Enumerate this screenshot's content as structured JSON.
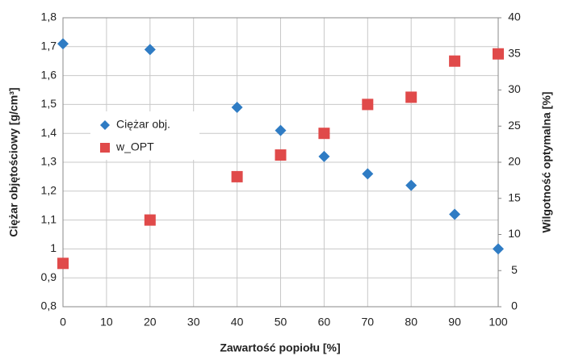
{
  "chart_data": {
    "type": "scatter",
    "xlabel": "Zawartość popiołu [%]",
    "ylabel": "Ciężar objętościowy [g/cm³]",
    "y2label": "Wilgotność optymalna [%]",
    "x": [
      0,
      20,
      40,
      50,
      60,
      70,
      80,
      90,
      100
    ],
    "series": [
      {
        "name": "Ciężar obj.",
        "color": "#2f7cc4",
        "marker": "diamond",
        "values": [
          1.71,
          1.69,
          1.49,
          1.41,
          1.32,
          1.26,
          1.22,
          1.12,
          1.0
        ]
      },
      {
        "name": "w_OPT",
        "color": "#e04a4a",
        "marker": "square",
        "axis": "y2",
        "values": [
          6,
          12,
          18,
          21,
          24,
          28,
          29,
          34,
          35
        ]
      }
    ],
    "xlim": [
      0,
      100
    ],
    "xticks": [
      0,
      10,
      20,
      30,
      40,
      50,
      60,
      70,
      80,
      90,
      100
    ],
    "ylim": [
      0.8,
      1.8
    ],
    "yticks": [
      {
        "value": 0.8,
        "label": "0,8"
      },
      {
        "value": 0.9,
        "label": "0,9"
      },
      1,
      {
        "value": 1.1,
        "label": "1,1"
      },
      {
        "value": 1.2,
        "label": "1,2"
      },
      {
        "value": 1.3,
        "label": "1,3"
      },
      {
        "value": 1.4,
        "label": "1,4"
      },
      {
        "value": 1.5,
        "label": "1,5"
      },
      {
        "value": 1.6,
        "label": "1,6"
      },
      {
        "value": 1.7,
        "label": "1,7"
      },
      {
        "value": 1.8,
        "label": "1,8"
      }
    ],
    "y2lim": [
      0,
      40
    ],
    "y2ticks": [
      0,
      5,
      10,
      15,
      20,
      25,
      30,
      35,
      40
    ],
    "grid": true
  }
}
